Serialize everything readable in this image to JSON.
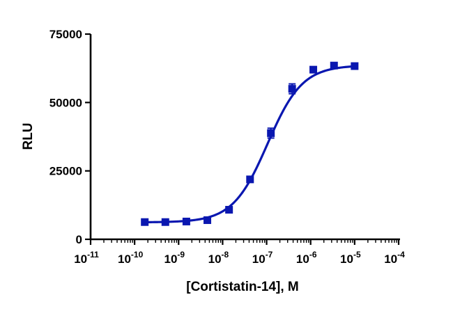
{
  "chart_data": {
    "type": "scatter",
    "xlabel": "[Cortistatin-14], M",
    "ylabel": "RLU",
    "xscale": "log",
    "xlim": [
      1e-11,
      0.0001
    ],
    "ylim": [
      0,
      75000
    ],
    "x_ticks": [
      {
        "base": "10",
        "exp": "-11",
        "value": 1e-11
      },
      {
        "base": "10",
        "exp": "-10",
        "value": 1e-10
      },
      {
        "base": "10",
        "exp": "-9",
        "value": 1e-09
      },
      {
        "base": "10",
        "exp": "-8",
        "value": 1e-08
      },
      {
        "base": "10",
        "exp": "-7",
        "value": 1e-07
      },
      {
        "base": "10",
        "exp": "-6",
        "value": 1e-06
      },
      {
        "base": "10",
        "exp": "-5",
        "value": 1e-05
      },
      {
        "base": "10",
        "exp": "-4",
        "value": 0.0001
      }
    ],
    "y_ticks": [
      {
        "label": "0",
        "value": 0
      },
      {
        "label": "25000",
        "value": 25000
      },
      {
        "label": "50000",
        "value": 50000
      },
      {
        "label": "75000",
        "value": 75000
      }
    ],
    "series": [
      {
        "x": [
          1.7e-10,
          5e-10,
          1.5e-09,
          4.5e-09,
          1.4e-08,
          4.2e-08,
          1.25e-07,
          3.8e-07,
          1.15e-06,
          3.4e-06,
          1e-05
        ],
        "y": [
          6300,
          6300,
          6500,
          7000,
          10800,
          21900,
          38800,
          55000,
          62000,
          63500,
          63300
        ],
        "err": [
          300,
          300,
          300,
          300,
          400,
          400,
          1800,
          1800,
          400,
          300,
          300
        ]
      }
    ],
    "fit": {
      "model": "4PL",
      "bottom": 6200,
      "top": 63600,
      "ec50": 1.05e-07,
      "hill": 1.1
    },
    "color": "#0a17b0",
    "grid": false
  }
}
